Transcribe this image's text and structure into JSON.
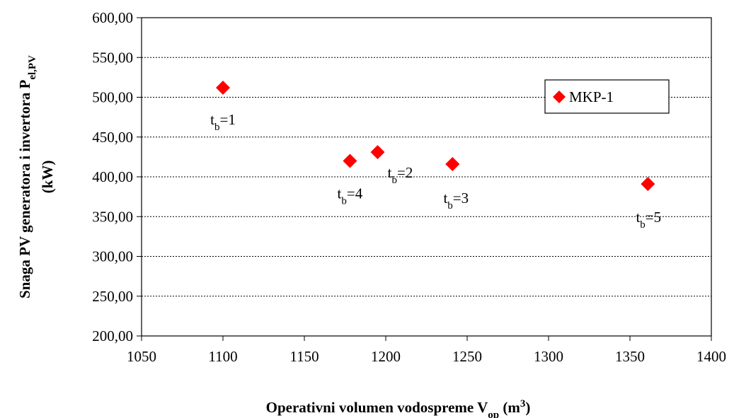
{
  "chart_data": {
    "type": "scatter",
    "x_label": [
      {
        "text": "Operativni volumen vodospreme V"
      },
      {
        "text": "op",
        "sub": true
      },
      {
        "text": " (m"
      },
      {
        "text": "3",
        "sup": true
      },
      {
        "text": ")"
      }
    ],
    "y_label": [
      [
        {
          "text": "Snaga PV generatora i invertora P"
        },
        {
          "text": "el,PV",
          "sub": true
        }
      ],
      [
        {
          "text": "(kW)"
        }
      ]
    ],
    "series": [
      {
        "name": "MKP-1",
        "color": "#ff0000",
        "x": [
          1100,
          1178,
          1195,
          1241,
          1361
        ],
        "values": [
          512,
          420,
          431,
          416,
          391
        ]
      }
    ],
    "point_labels": [
      [
        {
          "text": "t"
        },
        {
          "text": "b",
          "sub": true
        },
        {
          "text": "=1"
        }
      ],
      [
        {
          "text": "t"
        },
        {
          "text": "b",
          "sub": true
        },
        {
          "text": "=4"
        }
      ],
      [
        {
          "text": "t"
        },
        {
          "text": "b",
          "sub": true
        },
        {
          "text": "=2"
        }
      ],
      [
        {
          "text": "t"
        },
        {
          "text": "b",
          "sub": true
        },
        {
          "text": "=3"
        }
      ],
      [
        {
          "text": "t"
        },
        {
          "text": "b",
          "sub": true
        },
        {
          "text": "=5"
        }
      ]
    ],
    "xlim": [
      1050,
      1400
    ],
    "xticks": [
      1050,
      1100,
      1150,
      1200,
      1250,
      1300,
      1350,
      1400
    ],
    "ylim": [
      200,
      600
    ],
    "yticks": [
      {
        "value": 200,
        "label": "200,00"
      },
      {
        "value": 250,
        "label": "250,00"
      },
      {
        "value": 300,
        "label": "300,00"
      },
      {
        "value": 350,
        "label": "350,00"
      },
      {
        "value": 400,
        "label": "400,00"
      },
      {
        "value": 450,
        "label": "450,00"
      },
      {
        "value": 500,
        "label": "500,00"
      },
      {
        "value": 550,
        "label": "550,00"
      },
      {
        "value": 600,
        "label": "600,00"
      }
    ],
    "grid": true,
    "legend": "upper right"
  }
}
